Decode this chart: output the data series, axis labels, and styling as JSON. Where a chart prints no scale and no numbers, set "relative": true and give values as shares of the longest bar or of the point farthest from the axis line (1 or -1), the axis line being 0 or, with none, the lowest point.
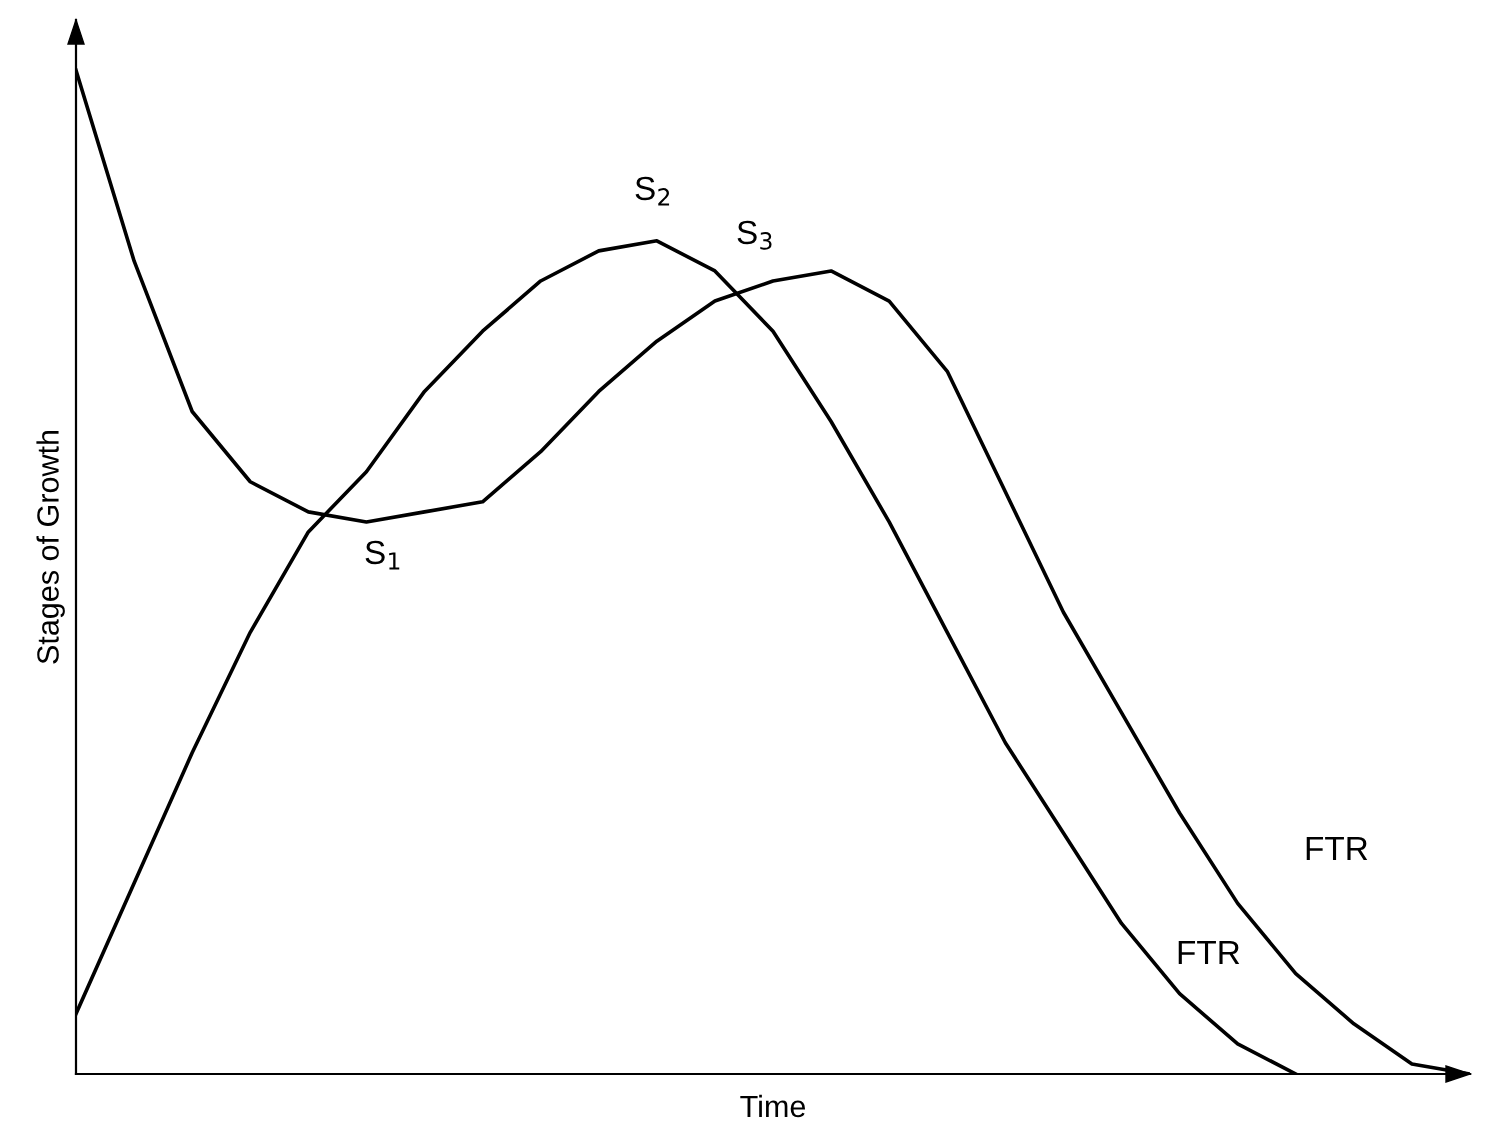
{
  "chart_data": {
    "type": "line",
    "relative": true,
    "xlabel": "Time",
    "ylabel": "Stages of Growth",
    "categories": [
      null,
      null,
      null,
      null,
      null,
      null,
      null,
      null,
      null,
      null,
      null,
      null,
      null,
      null,
      null,
      null,
      null,
      null,
      null,
      null,
      null,
      null,
      null,
      null,
      null
    ],
    "series": [
      {
        "color": "#000000",
        "values": [
          1.0,
          0.81,
          0.66,
          0.59,
          0.56,
          0.55,
          0.56,
          0.57,
          0.62,
          0.68,
          0.73,
          0.77,
          0.79,
          0.8,
          0.77,
          0.7,
          0.58,
          0.46,
          0.36,
          0.26,
          0.17,
          0.1,
          0.05,
          0.01,
          0
        ]
      },
      {
        "color": "#000000",
        "values": [
          0.06,
          0.19,
          0.32,
          0.44,
          0.54,
          0.6,
          0.68,
          0.74,
          0.79,
          0.82,
          0.83,
          0.8,
          0.74,
          0.65,
          0.55,
          0.44,
          0.33,
          0.24,
          0.15,
          0.08,
          0.03,
          0.0,
          null,
          null,
          null
        ]
      }
    ],
    "annotations": [
      "S$_{1}$",
      "S$_{2}$",
      "S$_{3}$",
      "FTR",
      "FTR"
    ],
    "grid": false,
    "legend": false,
    "marker": "none",
    "line_style": "solid"
  }
}
